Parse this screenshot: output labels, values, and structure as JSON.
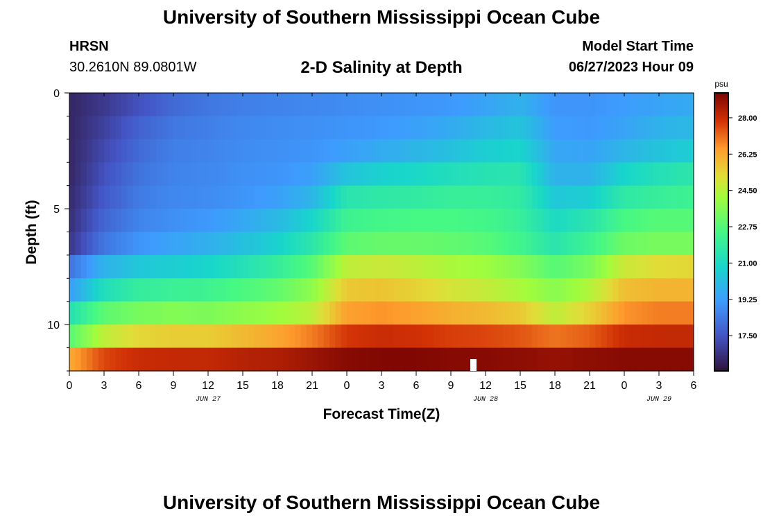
{
  "header": {
    "title": "University of Southern Mississippi Ocean Cube",
    "station": "HRSN",
    "coords": "30.2610N  89.0801W",
    "subtitle": "2-D Salinity at Depth",
    "model_label": "Model Start Time",
    "model_time": "06/27/2023 Hour 09"
  },
  "footer": {
    "title": "University of Southern Mississippi Ocean Cube"
  },
  "chart_data": {
    "type": "heatmap",
    "title": "2-D Salinity at Depth",
    "xlabel": "Forecast Time(Z)",
    "ylabel": "Depth (ft)",
    "x_range_hours": [
      0,
      54
    ],
    "x_tick_hours": [
      0,
      3,
      6,
      9,
      12,
      15,
      18,
      21,
      24,
      27,
      30,
      33,
      36,
      39,
      42,
      45,
      48,
      51,
      54
    ],
    "x_tick_labels": [
      "0",
      "3",
      "6",
      "9",
      "12",
      "15",
      "18",
      "21",
      "0",
      "3",
      "6",
      "9",
      "12",
      "15",
      "18",
      "21",
      "0",
      "3",
      "6"
    ],
    "date_labels": [
      {
        "label": "JUN 27",
        "hour": 12
      },
      {
        "label": "JUN 28",
        "hour": 36
      },
      {
        "label": "JUN 29",
        "hour": 51
      }
    ],
    "y_range_ft": [
      0,
      12
    ],
    "y_tick_values": [
      0,
      5,
      10
    ],
    "y_tick_labels": [
      "0",
      "5",
      "10"
    ],
    "current_time_marker_hour": 35,
    "colorbar": {
      "unit": "psu",
      "range": [
        15.8,
        29.2
      ],
      "tick_values": [
        17.5,
        19.25,
        21.0,
        22.75,
        24.5,
        26.25,
        28.0
      ],
      "tick_labels": [
        "17.50",
        "19.25",
        "21.00",
        "22.75",
        "24.50",
        "26.25",
        "28.00"
      ]
    },
    "depth_levels_ft": [
      0.5,
      1.5,
      2.5,
      3.5,
      4.5,
      5.5,
      6.5,
      7.5,
      8.5,
      9.5,
      10.5,
      11.5
    ],
    "time_hours": [
      0,
      3,
      6,
      9,
      12,
      15,
      18,
      21,
      24,
      27,
      30,
      33,
      36,
      39,
      42,
      45,
      48,
      51,
      54
    ],
    "salinity_psu": [
      [
        16.3,
        16.8,
        17.4,
        18.0,
        18.3,
        18.5,
        18.6,
        18.7,
        18.8,
        18.9,
        19.0,
        19.1,
        19.4,
        19.8,
        19.0,
        19.0,
        19.2,
        19.4,
        19.6
      ],
      [
        16.3,
        17.0,
        17.8,
        18.3,
        18.5,
        18.7,
        18.8,
        18.9,
        19.0,
        19.1,
        19.3,
        19.6,
        20.0,
        20.3,
        19.2,
        19.1,
        19.4,
        19.8,
        20.0
      ],
      [
        16.3,
        17.2,
        18.0,
        18.5,
        18.6,
        18.8,
        18.9,
        19.0,
        19.3,
        19.6,
        19.9,
        20.2,
        20.6,
        20.8,
        19.5,
        19.4,
        19.9,
        20.3,
        20.6
      ],
      [
        16.3,
        17.4,
        18.2,
        18.6,
        18.7,
        18.9,
        19.0,
        19.3,
        20.3,
        20.7,
        20.9,
        21.2,
        21.4,
        21.5,
        19.8,
        19.8,
        20.8,
        21.3,
        21.6
      ],
      [
        16.4,
        17.6,
        18.4,
        18.7,
        18.8,
        19.0,
        19.3,
        19.9,
        21.5,
        21.7,
        21.8,
        22.0,
        22.0,
        21.8,
        20.4,
        20.6,
        21.7,
        22.0,
        22.2
      ],
      [
        16.5,
        17.9,
        18.6,
        18.9,
        19.1,
        19.5,
        20.0,
        20.8,
        22.2,
        22.4,
        22.5,
        22.5,
        22.4,
        22.0,
        21.0,
        21.5,
        22.5,
        22.8,
        22.8
      ],
      [
        16.7,
        18.3,
        19.0,
        19.4,
        19.7,
        20.2,
        20.7,
        21.6,
        22.9,
        23.1,
        23.1,
        23.0,
        22.8,
        22.3,
        21.5,
        22.2,
        23.2,
        23.4,
        23.4
      ],
      [
        18.2,
        19.8,
        20.4,
        20.6,
        20.8,
        21.3,
        21.9,
        22.8,
        24.6,
        24.8,
        24.6,
        24.3,
        24.1,
        23.6,
        22.8,
        23.4,
        24.8,
        25.2,
        25.3
      ],
      [
        19.2,
        21.2,
        21.9,
        22.1,
        22.2,
        22.6,
        23.0,
        23.8,
        25.6,
        25.7,
        25.4,
        25.0,
        24.7,
        24.3,
        23.7,
        24.4,
        25.8,
        26.0,
        26.0
      ],
      [
        21.3,
        22.9,
        23.4,
        23.6,
        23.5,
        23.8,
        24.1,
        24.6,
        26.4,
        26.6,
        26.4,
        26.1,
        25.9,
        25.6,
        24.6,
        25.4,
        26.6,
        26.9,
        26.9
      ],
      [
        22.8,
        24.6,
        25.3,
        25.5,
        25.5,
        25.9,
        26.3,
        26.9,
        27.8,
        28.0,
        27.9,
        27.7,
        27.6,
        27.4,
        27.0,
        27.3,
        28.0,
        28.1,
        28.1
      ],
      [
        26.2,
        27.6,
        28.0,
        28.1,
        28.1,
        28.3,
        28.4,
        28.7,
        29.0,
        29.1,
        29.1,
        29.0,
        29.0,
        28.9,
        28.8,
        28.9,
        29.0,
        29.0,
        29.0
      ]
    ]
  }
}
